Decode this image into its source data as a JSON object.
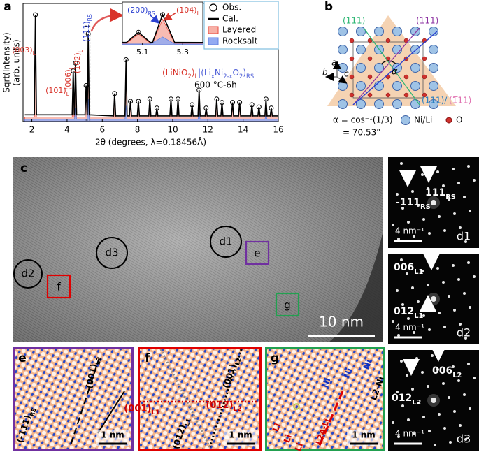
{
  "chart_data": {
    "type": "line",
    "panel_label": "a",
    "xlabel": "2θ (degrees, λ=0.18456Å)",
    "ylabel": [
      "Sqrt(Intensity)",
      "(arb. units)"
    ],
    "xlim": [
      1.5,
      16
    ],
    "ylim": [
      0,
      1.05
    ],
    "xticks": [
      2,
      4,
      6,
      8,
      10,
      12,
      14,
      16
    ],
    "series": [
      {
        "name": "Layered",
        "kind": "area",
        "color": "#e8483c",
        "fill": "#f7b0a6",
        "x": [
          1.6,
          2.14,
          2.2,
          2.26,
          4.29,
          4.35,
          4.41,
          4.42,
          4.48,
          4.54,
          5.02,
          5.08,
          5.14,
          5.15,
          5.2,
          5.26,
          6.64,
          6.7,
          6.76,
          7.29,
          7.35,
          7.41,
          7.54,
          7.6,
          7.66,
          7.99,
          8.05,
          8.11,
          8.64,
          8.7,
          8.76,
          9.04,
          9.1,
          9.16,
          9.84,
          9.9,
          9.96,
          10.24,
          10.3,
          10.36,
          11.04,
          11.1,
          11.16,
          11.44,
          11.5,
          11.56,
          11.84,
          11.9,
          11.96,
          12.44,
          12.5,
          12.56,
          12.74,
          12.8,
          12.86,
          13.34,
          13.4,
          13.46,
          13.74,
          13.8,
          13.86,
          14.44,
          14.5,
          14.56,
          14.84,
          14.9,
          14.96,
          15.24,
          15.3,
          15.36,
          15.54,
          15.6,
          15.66,
          16
        ],
        "values": [
          0.04,
          0.04,
          0.86,
          0.04,
          0.04,
          0.4,
          0.04,
          0.04,
          0.46,
          0.04,
          0.04,
          0.28,
          0.04,
          0.04,
          0.66,
          0.04,
          0.04,
          0.23,
          0.04,
          0.04,
          0.48,
          0.04,
          0.04,
          0.16,
          0.04,
          0.04,
          0.16,
          0.04,
          0.04,
          0.18,
          0.04,
          0.04,
          0.11,
          0.04,
          0.04,
          0.18,
          0.04,
          0.04,
          0.18,
          0.04,
          0.04,
          0.13,
          0.04,
          0.04,
          0.24,
          0.04,
          0.04,
          0.11,
          0.04,
          0.04,
          0.18,
          0.04,
          0.04,
          0.15,
          0.04,
          0.04,
          0.15,
          0.04,
          0.04,
          0.15,
          0.04,
          0.04,
          0.13,
          0.04,
          0.04,
          0.12,
          0.04,
          0.04,
          0.17,
          0.04,
          0.04,
          0.11,
          0.04,
          0.04
        ]
      },
      {
        "name": "Rocksalt",
        "kind": "area",
        "color": "#5f7fe0",
        "fill": "#92aaf2",
        "x": [
          1.6,
          4.42,
          4.48,
          4.54,
          5.14,
          5.2,
          5.26,
          7.29,
          7.35,
          7.41,
          11.44,
          11.5,
          11.56,
          15.24,
          15.3,
          15.36,
          16
        ],
        "values": [
          0.02,
          0.02,
          0.12,
          0.02,
          0.02,
          0.2,
          0.02,
          0.02,
          0.14,
          0.02,
          0.02,
          0.08,
          0.02,
          0.02,
          0.06,
          0.02,
          0.02
        ]
      },
      {
        "name": "Cal.",
        "kind": "line",
        "color": "#000000",
        "x": [
          1.6,
          2.14,
          2.2,
          2.26,
          4.29,
          4.35,
          4.41,
          4.42,
          4.48,
          4.54,
          5.02,
          5.08,
          5.14,
          5.15,
          5.2,
          5.26,
          6.64,
          6.7,
          6.76,
          7.29,
          7.35,
          7.41,
          7.54,
          7.6,
          7.66,
          7.99,
          8.05,
          8.11,
          8.64,
          8.7,
          8.76,
          9.04,
          9.1,
          9.16,
          9.84,
          9.9,
          9.96,
          10.24,
          10.3,
          10.36,
          11.04,
          11.1,
          11.16,
          11.44,
          11.5,
          11.56,
          11.84,
          11.9,
          11.96,
          12.44,
          12.5,
          12.56,
          12.74,
          12.8,
          12.86,
          13.34,
          13.4,
          13.46,
          13.74,
          13.8,
          13.86,
          14.44,
          14.5,
          14.56,
          14.84,
          14.9,
          14.96,
          15.24,
          15.3,
          15.36,
          15.54,
          15.6,
          15.66,
          16
        ],
        "values": [
          0.06,
          0.06,
          0.95,
          0.06,
          0.06,
          0.45,
          0.06,
          0.06,
          0.52,
          0.06,
          0.06,
          0.32,
          0.06,
          0.06,
          0.78,
          0.06,
          0.05,
          0.25,
          0.05,
          0.05,
          0.55,
          0.05,
          0.05,
          0.18,
          0.05,
          0.05,
          0.18,
          0.05,
          0.05,
          0.2,
          0.05,
          0.05,
          0.12,
          0.05,
          0.05,
          0.2,
          0.05,
          0.05,
          0.2,
          0.05,
          0.05,
          0.15,
          0.05,
          0.05,
          0.28,
          0.05,
          0.05,
          0.12,
          0.05,
          0.05,
          0.2,
          0.05,
          0.05,
          0.17,
          0.05,
          0.05,
          0.17,
          0.05,
          0.05,
          0.17,
          0.05,
          0.05,
          0.15,
          0.05,
          0.05,
          0.13,
          0.05,
          0.05,
          0.2,
          0.05,
          0.05,
          0.12,
          0.05,
          0.05
        ]
      },
      {
        "name": "Obs.",
        "kind": "markers",
        "color": "#000000",
        "x": [
          2.2,
          4.35,
          4.48,
          5.08,
          5.2,
          6.7,
          7.35,
          7.6,
          8.05,
          8.7,
          9.1,
          9.9,
          10.3,
          11.1,
          11.5,
          11.9,
          12.5,
          12.8,
          13.4,
          13.8,
          14.5,
          14.9,
          15.3,
          15.6
        ],
        "values": [
          0.95,
          0.45,
          0.52,
          0.32,
          0.78,
          0.25,
          0.55,
          0.18,
          0.18,
          0.2,
          0.12,
          0.2,
          0.2,
          0.15,
          0.28,
          0.12,
          0.2,
          0.17,
          0.17,
          0.17,
          0.15,
          0.13,
          0.2,
          0.12
        ]
      }
    ],
    "peak_labels": [
      [
        "(003)",
        "L"
      ],
      [
        "(101)",
        "L"
      ],
      [
        "(006)",
        "L"
      ],
      [
        "(102)",
        "L"
      ],
      [
        "(111)",
        "RS"
      ]
    ],
    "formula": [
      "(LiNiO",
      "2",
      ")",
      "L",
      "|(Li",
      "x",
      "Ni",
      "2-x",
      "O",
      "2",
      ")",
      "RS"
    ],
    "condition": "600 °C-6h",
    "inset": {
      "xlim": [
        5.0,
        5.4
      ],
      "ylim": [
        0,
        0.85
      ],
      "xticks": [
        5.1,
        5.3
      ],
      "labels": [
        [
          "(200)",
          "RS"
        ],
        [
          "(104)",
          "L"
        ]
      ]
    }
  },
  "panel_b": {
    "label": "b",
    "planes": [
      "(11̅1)",
      "(111̅)",
      "(111)/",
      "(1̅11)"
    ],
    "axes": [
      "a",
      "b",
      "c"
    ],
    "angle": "α",
    "angle_formula": [
      "α = cos⁻¹(1/3)",
      "= 70.53°"
    ],
    "legend": [
      "Ni/Li",
      "O"
    ]
  },
  "panel_c": {
    "label": "c",
    "circles": [
      "d1",
      "d2",
      "d3"
    ],
    "boxes": [
      "e",
      "f",
      "g"
    ],
    "scale_bar": "10 nm"
  },
  "fft_panels": [
    {
      "label": "d1",
      "spots": [
        [
          "111",
          "RS"
        ],
        [
          "-111",
          "RS"
        ]
      ],
      "scale_bar": "4 nm⁻¹"
    },
    {
      "label": "d2",
      "spots": [
        [
          "006",
          "L1"
        ],
        [
          "012",
          "L1"
        ]
      ],
      "scale_bar": "4 nm⁻¹"
    },
    {
      "label": "d3",
      "spots": [
        [
          "006",
          "L2"
        ],
        [
          "012",
          "L2"
        ]
      ],
      "scale_bar": "4 nm⁻¹"
    }
  ],
  "zoom_panels": [
    {
      "label": "e",
      "annotations": [
        [
          "(001)",
          "L2"
        ],
        [
          "(-111)",
          "RS"
        ]
      ],
      "scale_bar": "1 nm"
    },
    {
      "label": "f",
      "annotations": [
        [
          "(001)",
          "L2"
        ],
        [
          "(001)",
          "L1"
        ],
        [
          "(012)",
          "L2"
        ],
        [
          "(012)",
          "L1"
        ]
      ],
      "scale_bar": "1 nm"
    },
    {
      "label": "g",
      "annotations": [
        "Ni",
        "Ni",
        "Ni",
        "L2-Ni",
        "Li",
        "Li",
        "Li",
        "L2A-Li"
      ],
      "scale_bar": "1 nm"
    }
  ]
}
